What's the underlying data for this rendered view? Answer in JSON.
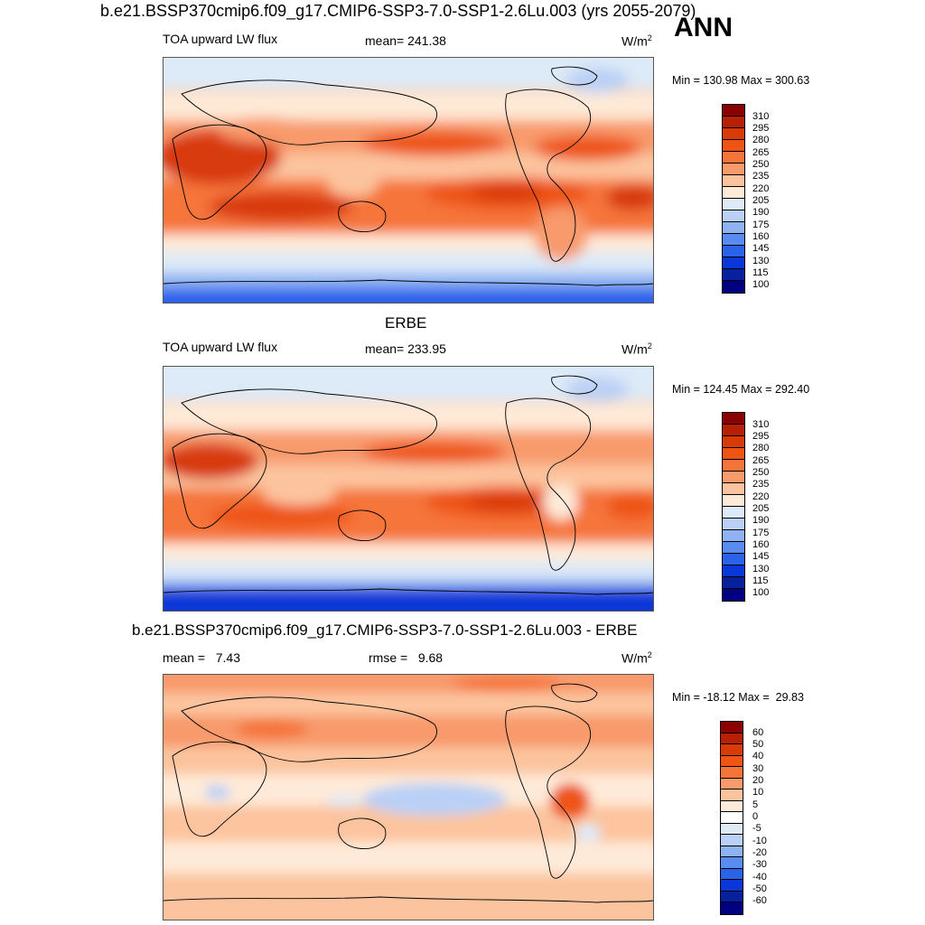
{
  "header": {
    "title": "b.e21.BSSP370cmip6.f09_g17.CMIP6-SSP3-7.0-SSP1-2.6Lu.003 (yrs 2055-2079)",
    "season": "ANN"
  },
  "panels": [
    {
      "left": "TOA upward LW flux",
      "center": "mean= 241.38",
      "units": "W/m",
      "units_sup": "2",
      "minmax": "Min = 130.98 Max = 300.63",
      "colorbar_labels": [
        "310",
        "295",
        "280",
        "265",
        "250",
        "235",
        "220",
        "205",
        "190",
        "175",
        "160",
        "145",
        "130",
        "115",
        "100"
      ]
    },
    {
      "subtitle": "ERBE",
      "left": "TOA upward LW flux",
      "center": "mean= 233.95",
      "units": "W/m",
      "units_sup": "2",
      "minmax": "Min = 124.45 Max = 292.40",
      "colorbar_labels": [
        "310",
        "295",
        "280",
        "265",
        "250",
        "235",
        "220",
        "205",
        "190",
        "175",
        "160",
        "145",
        "130",
        "115",
        "100"
      ]
    },
    {
      "subtitle": "b.e21.BSSP370cmip6.f09_g17.CMIP6-SSP3-7.0-SSP1-2.6Lu.003 - ERBE",
      "left": "mean =   7.43",
      "center": "rmse =   9.68",
      "units": "W/m",
      "units_sup": "2",
      "minmax": "Min = -18.12 Max =  29.83",
      "colorbar_labels": [
        "60",
        "50",
        "40",
        "30",
        "20",
        "10",
        "5",
        "0",
        "-5",
        "-10",
        "-20",
        "-30",
        "-40",
        "-50",
        "-60"
      ]
    }
  ],
  "colors": {
    "abs_scale": [
      "#8b0000",
      "#b82005",
      "#d83a08",
      "#ee5515",
      "#f5743a",
      "#f89a6c",
      "#fcc49e",
      "#feead8",
      "#ddeaf8",
      "#bad0f6",
      "#8fb3f2",
      "#5a8bf0",
      "#2a62ea",
      "#0a38d8",
      "#06209e",
      "#000080"
    ],
    "diff_scale": [
      "#8b0000",
      "#b82005",
      "#d83a08",
      "#ee5515",
      "#f5743a",
      "#f89a6c",
      "#fcc49e",
      "#feead8",
      "#ffffff",
      "#ddeaf8",
      "#bad0f6",
      "#8fb3f2",
      "#5a8bf0",
      "#2a62ea",
      "#0a38d8",
      "#06209e",
      "#000080"
    ]
  }
}
